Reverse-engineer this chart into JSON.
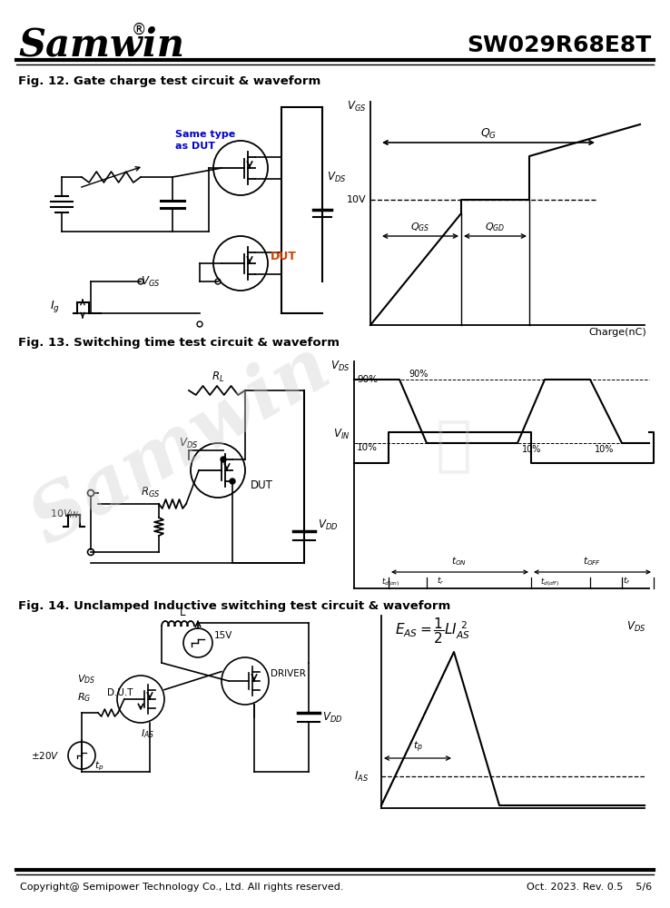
{
  "title_company": "Samwin",
  "title_part": "SW029R68E8T",
  "fig12_title": "Fig. 12. Gate charge test circuit & waveform",
  "fig13_title": "Fig. 13. Switching time test circuit & waveform",
  "fig14_title": "Fig. 14. Unclamped Inductive switching test circuit & waveform",
  "footer_left": "Copyright@ Semipower Technology Co., Ltd. All rights reserved.",
  "footer_right": "Oct. 2023. Rev. 0.5    5/6",
  "bg_color": "#ffffff",
  "line_color": "#000000",
  "dut_color": "#cc4400",
  "sametype_color": "#0000cc"
}
